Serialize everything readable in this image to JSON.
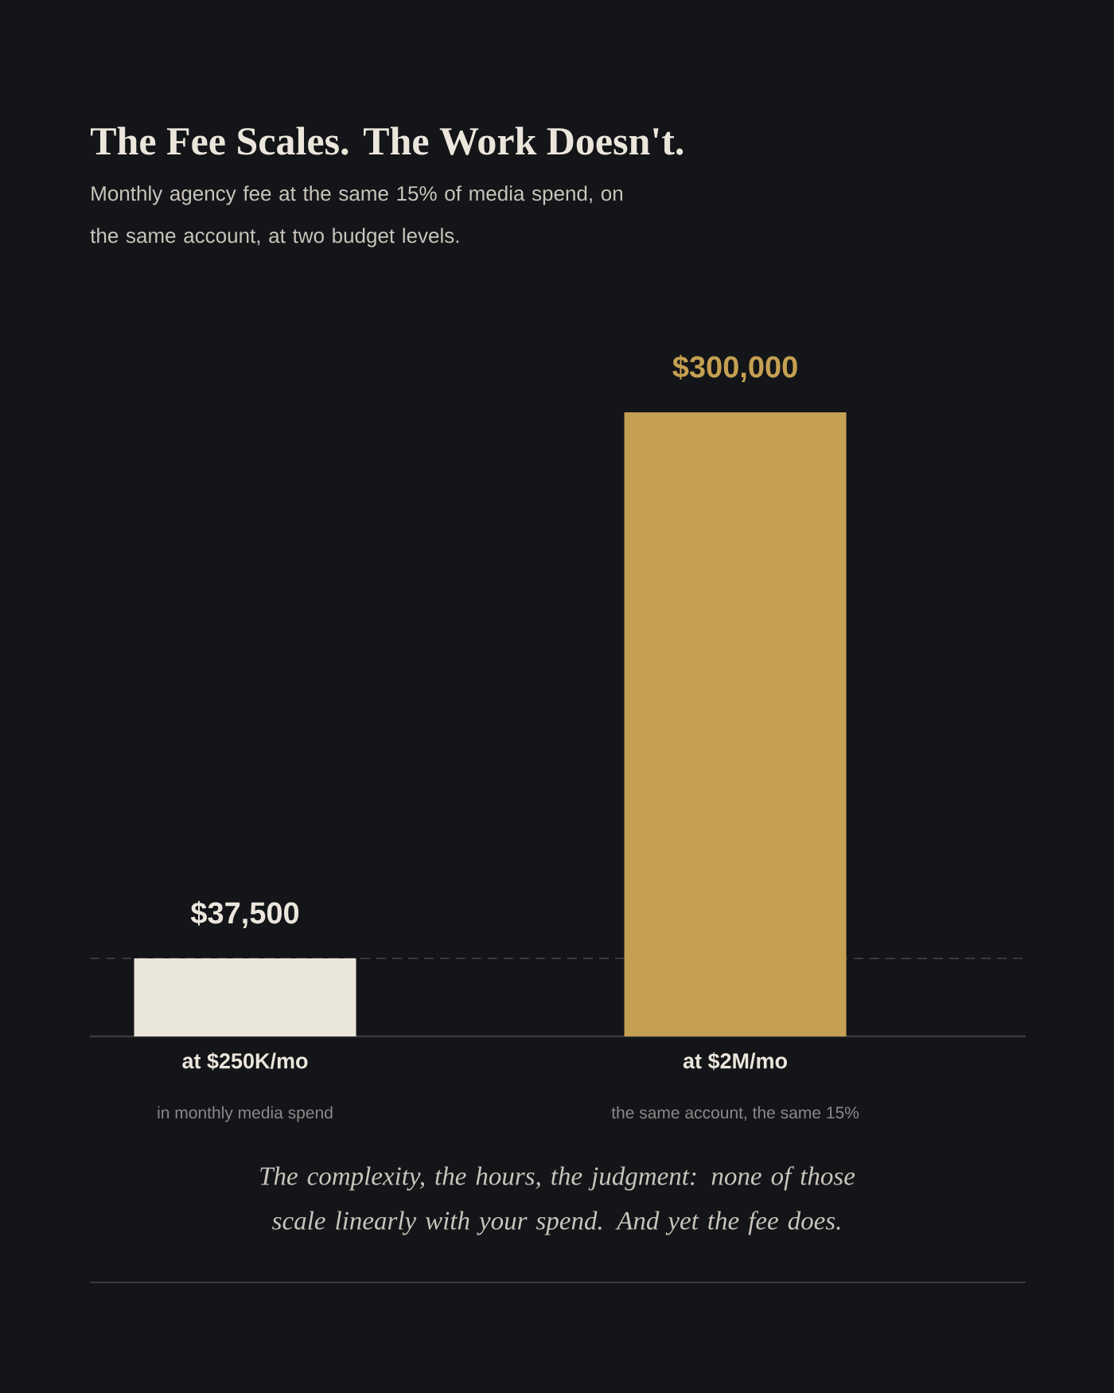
{
  "chart_data": {
    "type": "bar",
    "title": "The Fee Scales. The Work Doesn't.",
    "subtitle": "Monthly agency fee at the same 15% of media spend, on the same account, at two budget levels.",
    "categories": [
      "at $250K/mo",
      "at $2M/mo"
    ],
    "values": [
      37500,
      300000
    ],
    "colors": [
      "#ebe6dc",
      "#c5a052"
    ],
    "value_labels": [
      "$37,500",
      "$300,000"
    ],
    "ref_lines": [
      {
        "axis": "y",
        "value": 37500,
        "color": "#45464b",
        "line_style": "dashed"
      }
    ],
    "annotations": [
      "in monthly media spend",
      "the same account, the same 15%",
      "The complexity, the hours, the judgment: none of those scale linearly with your spend. And yet the fee does."
    ]
  }
}
